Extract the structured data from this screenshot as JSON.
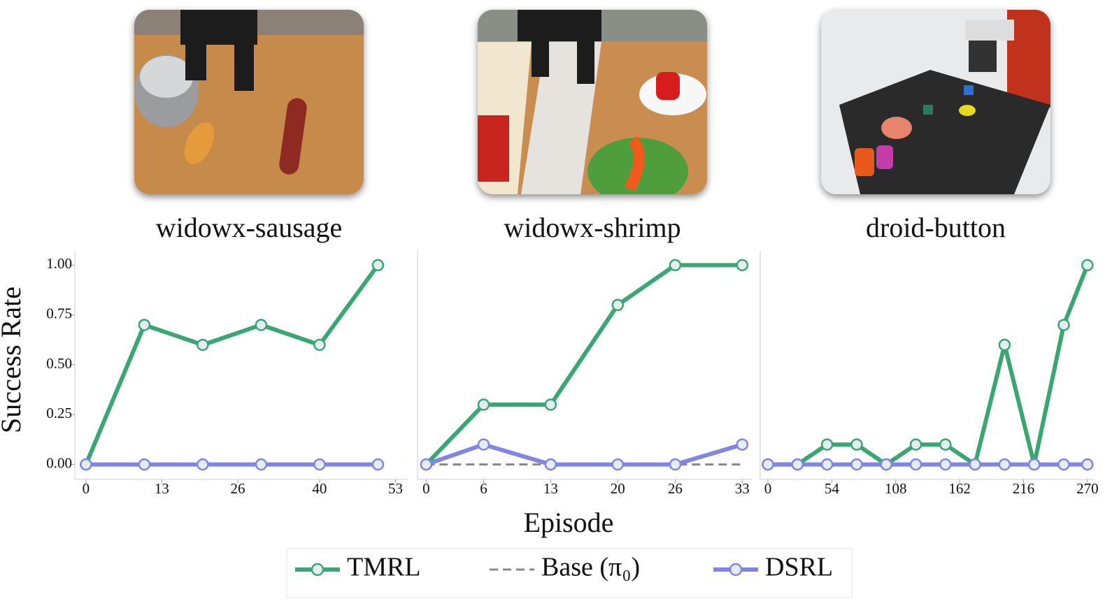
{
  "x_label": "Episode",
  "y_label": "Success Rate",
  "chart_data": [
    {
      "type": "line",
      "title": "widowx-sausage",
      "x": [
        0,
        10,
        20,
        30,
        40,
        50
      ],
      "xlim": [
        -1.9,
        55.1
      ],
      "xticks": [
        0,
        13,
        26,
        40,
        53
      ],
      "ylim": [
        -0.075,
        1.075
      ],
      "yticks": [
        {
          "value": 0,
          "label": "0.00"
        },
        {
          "value": 0.25,
          "label": "0.25"
        },
        {
          "value": 0.5,
          "label": "0.50"
        },
        {
          "value": 0.75,
          "label": "0.75"
        },
        {
          "value": 1,
          "label": "1.00"
        }
      ],
      "series": [
        {
          "name": "TMRL",
          "color": "#3aa672",
          "style": "solid",
          "values": [
            0,
            0.7,
            0.6,
            0.7,
            0.6,
            1.0
          ]
        },
        {
          "name": "Base (π₀)",
          "color": "#888888",
          "style": "dashed",
          "values": [
            0,
            0,
            0,
            0,
            0,
            0
          ]
        },
        {
          "name": "DSRL",
          "color": "#7f86e6",
          "style": "solid",
          "values": [
            0,
            0,
            0,
            0,
            0,
            0
          ]
        }
      ]
    },
    {
      "type": "line",
      "title": "widowx-shrimp",
      "x": [
        0,
        6,
        13,
        20,
        26,
        33
      ],
      "xlim": [
        -0.9,
        34
      ],
      "xticks": [
        0,
        6,
        13,
        20,
        26,
        33
      ],
      "ylim": [
        -0.075,
        1.075
      ],
      "series": [
        {
          "color": "#3aa672",
          "style": "solid",
          "values": [
            0,
            0.3,
            0.3,
            0.8,
            1.0,
            1.0
          ]
        },
        {
          "color": "#888888",
          "style": "dashed",
          "values": [
            0,
            0,
            0,
            0,
            0,
            0
          ]
        },
        {
          "color": "#7f86e6",
          "style": "solid",
          "values": [
            0,
            0.1,
            0,
            0,
            0,
            0.1
          ]
        }
      ]
    },
    {
      "type": "line",
      "title": "droid-button",
      "x": [
        0,
        25,
        50,
        75,
        100,
        125,
        150,
        175,
        200,
        225,
        250,
        270
      ],
      "xlim": [
        -6.5,
        276
      ],
      "xticks": [
        0,
        54,
        108,
        162,
        216,
        270
      ],
      "ylim": [
        -0.075,
        1.075
      ],
      "series": [
        {
          "color": "#3aa672",
          "style": "solid",
          "values": [
            0,
            0,
            0.1,
            0.1,
            0,
            0.1,
            0.1,
            0,
            0.6,
            0,
            0.7,
            1.0
          ]
        },
        {
          "color": "#888888",
          "style": "dashed",
          "values": [
            0,
            0,
            0,
            0,
            0,
            0,
            0,
            0,
            0,
            0,
            0,
            0
          ]
        },
        {
          "color": "#7f86e6",
          "style": "solid",
          "values": [
            0,
            0,
            0,
            0,
            0,
            0,
            0,
            0,
            0,
            0,
            0,
            0
          ]
        }
      ]
    }
  ]
}
